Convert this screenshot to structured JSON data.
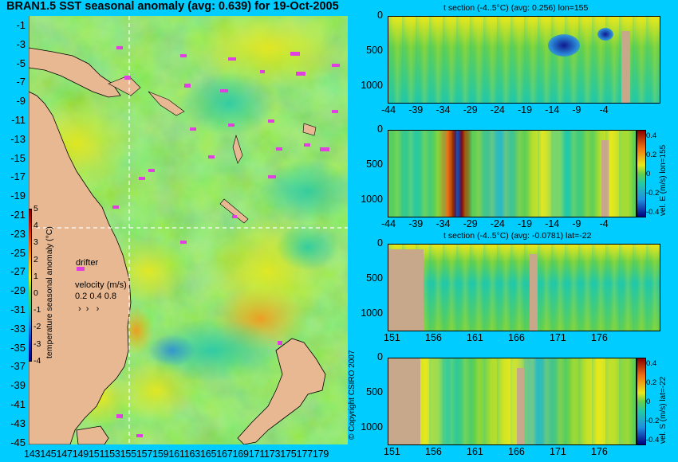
{
  "title": "BRAN1.5 SST seasonal anomaly (avg: 0.639) for 19-Oct-2005",
  "map": {
    "lat_ticks": [
      "-1",
      "-3",
      "-5",
      "-7",
      "-9",
      "-11",
      "-13",
      "-15",
      "-17",
      "-19",
      "-21",
      "-23",
      "-25",
      "-27",
      "-29",
      "-31",
      "-33",
      "-35",
      "-37",
      "-39",
      "-41",
      "-43",
      "-45"
    ],
    "lon_ticks": "143145147149151153155157159161163165167169171173175177179",
    "colorbar_label": "temperature seasonal anomaly (°C)",
    "colorbar_ticks": [
      "5",
      "4",
      "3",
      "2",
      "1",
      "0",
      "-1",
      "-2",
      "-3",
      "-4"
    ],
    "drifter_label": "drifter",
    "velocity_label": "velocity (m/s)",
    "velocity_scale": "0.2 0.4 0.8",
    "copyright": "© Copyright CSIRO 2007"
  },
  "panels": [
    {
      "title": "t section (-4..5°C) (avg: 0.256) lon=155",
      "xticks": [
        "-44",
        "-39",
        "-34",
        "-29",
        "-24",
        "-19",
        "-14",
        "-9",
        "-4"
      ],
      "yticks": [
        "0",
        "500",
        "1000"
      ],
      "colorbar_label": "",
      "colorbar_ticks": []
    },
    {
      "title": "",
      "xticks": [
        "-44",
        "-39",
        "-34",
        "-29",
        "-24",
        "-19",
        "-14",
        "-9",
        "-4"
      ],
      "yticks": [
        "0",
        "500",
        "1000"
      ],
      "colorbar_label": "vel. E (m/s) lon=155",
      "colorbar_ticks": [
        "0.4",
        "0.2",
        "0",
        "-0.2",
        "-0.4"
      ]
    },
    {
      "title": "t section (-4..5°C) (avg: -0.0781) lat=-22",
      "xticks": [
        "151",
        "156",
        "161",
        "166",
        "171",
        "176"
      ],
      "yticks": [
        "0",
        "500",
        "1000"
      ],
      "colorbar_label": "",
      "colorbar_ticks": []
    },
    {
      "title": "",
      "xticks": [
        "151",
        "156",
        "161",
        "166",
        "171",
        "176"
      ],
      "yticks": [
        "0",
        "500",
        "1000"
      ],
      "colorbar_label": "vel. S (m/s) lat=-22",
      "colorbar_ticks": [
        "0.4",
        "0.2",
        "0",
        "-0.2",
        "-0.4"
      ]
    }
  ],
  "colors": {
    "background": "#00ccff",
    "land": "#e8b892",
    "section_land": "#c8a88a",
    "drifter": "#e040e0",
    "ocean_base": "#66d04a"
  }
}
